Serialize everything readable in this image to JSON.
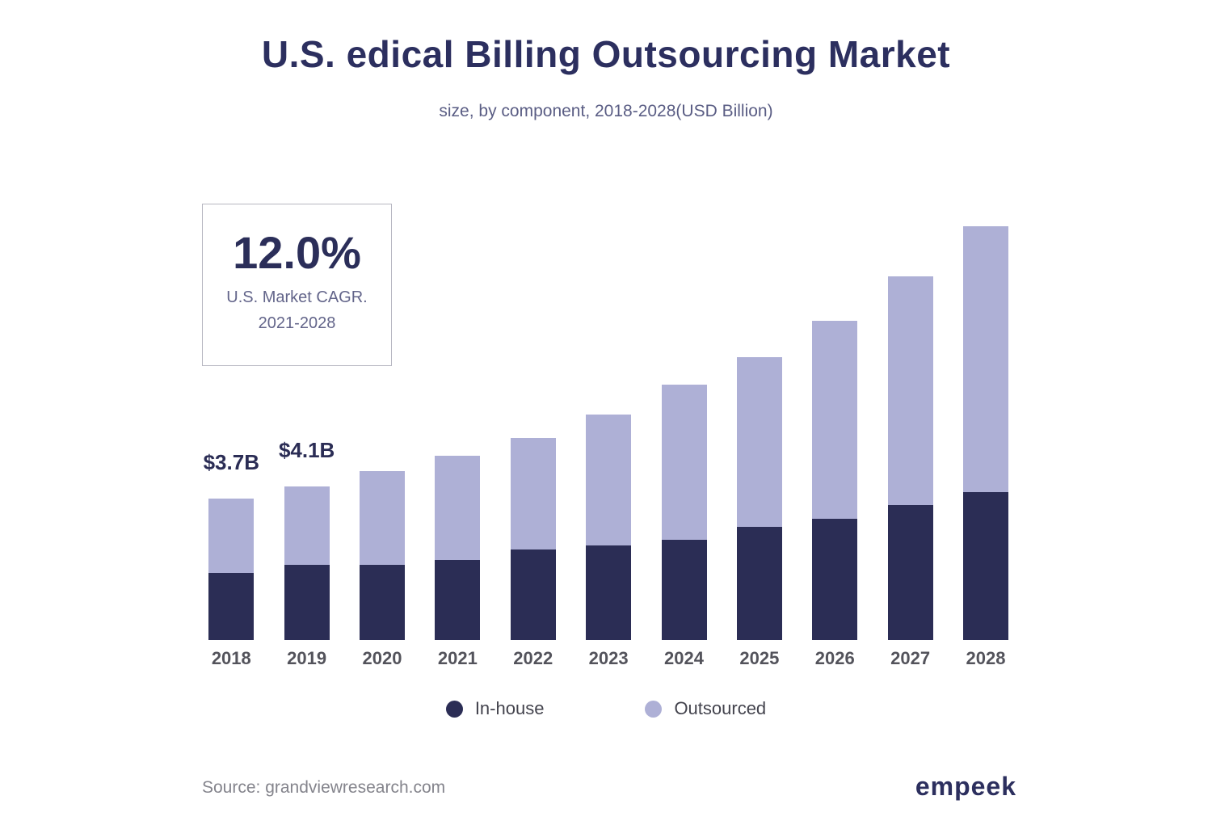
{
  "header": {
    "title": "U.S. edical Billing Outsourcing Market",
    "subtitle": "size, by component, 2018-2028(USD Billion)"
  },
  "cagr_box": {
    "value": "12.0%",
    "line1": "U.S. Market CAGR.",
    "line2": "2021-2028"
  },
  "chart_data": {
    "type": "bar",
    "stacked": true,
    "title": "U.S. edical Billing Outsourcing Market",
    "subtitle": "size, by component, 2018-2028(USD Billion)",
    "unit": "USD Billion",
    "categories": [
      "2018",
      "2019",
      "2020",
      "2021",
      "2022",
      "2023",
      "2024",
      "2025",
      "2026",
      "2027",
      "2028"
    ],
    "series": [
      {
        "name": "In-house",
        "color": "#2b2d55",
        "values": [
          1.77,
          1.99,
          1.99,
          2.12,
          2.39,
          2.5,
          2.65,
          2.99,
          3.21,
          3.57,
          3.91
        ]
      },
      {
        "name": "Outsourced",
        "color": "#aeb0d6",
        "values": [
          1.97,
          2.07,
          2.48,
          2.76,
          2.96,
          3.46,
          4.1,
          4.49,
          5.23,
          6.05,
          7.03
        ]
      }
    ],
    "totals": [
      3.74,
      4.06,
      4.47,
      4.88,
      5.35,
      5.96,
      6.75,
      7.48,
      8.44,
      9.62,
      10.94
    ],
    "annotations": [
      {
        "category": "2018",
        "label": "$3.7B"
      },
      {
        "category": "2019",
        "label": "$4.1B"
      }
    ],
    "xlabel": "",
    "ylabel": "",
    "ylim": [
      0,
      12
    ],
    "grid": false,
    "y_axis_visible": false,
    "legend_position": "bottom"
  },
  "legend": {
    "items": [
      {
        "label": "In-house",
        "color": "#2b2d55"
      },
      {
        "label": "Outsourced",
        "color": "#aeb0d6"
      }
    ]
  },
  "footer": {
    "source": "Source: grandviewresearch.com",
    "brand": "empeek"
  }
}
